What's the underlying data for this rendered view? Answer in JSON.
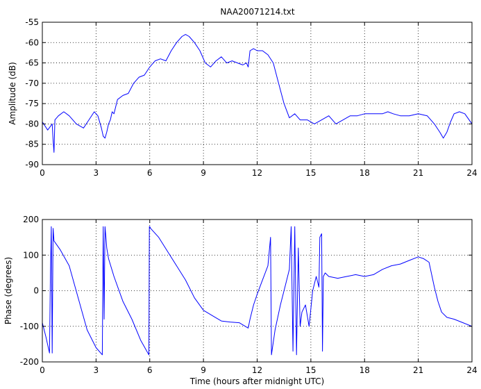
{
  "figure": {
    "title": "NAA20071214.txt"
  },
  "chart_data": [
    {
      "type": "line",
      "title": "NAA20071214.txt",
      "xlabel": "",
      "ylabel": "Amplitude (dB)",
      "xlim": [
        0,
        24
      ],
      "ylim": [
        -90,
        -55
      ],
      "xticks": [
        0,
        3,
        6,
        9,
        12,
        15,
        18,
        21,
        24
      ],
      "yticks": [
        -90,
        -85,
        -80,
        -75,
        -70,
        -65,
        -60,
        -55
      ],
      "grid": true,
      "line_color": "#0000ff",
      "series": [
        {
          "x": [
            0,
            0.3,
            0.55,
            0.6,
            0.65,
            0.7,
            0.9,
            1.2,
            1.5,
            1.9,
            2.3,
            2.6,
            2.9,
            3.1,
            3.3,
            3.4,
            3.5,
            3.6,
            3.7,
            3.8,
            3.9,
            4.0,
            4.2,
            4.5,
            4.8,
            5.1,
            5.4,
            5.7,
            6.0,
            6.3,
            6.6,
            6.9,
            7.2,
            7.5,
            7.8,
            8.0,
            8.2,
            8.5,
            8.8,
            9.1,
            9.4,
            9.7,
            10.0,
            10.3,
            10.6,
            10.9,
            11.2,
            11.4,
            11.5,
            11.6,
            11.8,
            12.0,
            12.3,
            12.6,
            12.9,
            13.2,
            13.5,
            13.8,
            14.1,
            14.4,
            14.8,
            15.2,
            15.6,
            16.0,
            16.4,
            16.8,
            17.2,
            17.6,
            18.0,
            18.5,
            19.0,
            19.3,
            19.6,
            20.0,
            20.5,
            21.0,
            21.5,
            21.9,
            22.2,
            22.4,
            22.6,
            22.8,
            23.0,
            23.3,
            23.6,
            24.0
          ],
          "values": [
            -79.5,
            -81.5,
            -80,
            -84,
            -87,
            -79,
            -78,
            -77,
            -78,
            -80,
            -81,
            -79,
            -77,
            -78,
            -81,
            -83,
            -83.5,
            -82,
            -80,
            -79,
            -77,
            -77.5,
            -74,
            -73,
            -72.5,
            -70,
            -68.5,
            -68,
            -66,
            -64.5,
            -64,
            -64.5,
            -62,
            -60,
            -58.5,
            -58,
            -58.5,
            -60,
            -62,
            -65,
            -66,
            -64.5,
            -63.5,
            -65,
            -64.5,
            -65,
            -65.5,
            -65,
            -66,
            -62,
            -61.5,
            -62,
            -62,
            -63,
            -65,
            -70,
            -75,
            -78.5,
            -77.5,
            -79,
            -79,
            -80,
            -79,
            -78,
            -80,
            -79,
            -78,
            -78,
            -77.5,
            -77.5,
            -77.5,
            -77,
            -77.5,
            -78,
            -78,
            -77.5,
            -78,
            -80,
            -82,
            -83.5,
            -82,
            -79.5,
            -77.5,
            -77,
            -77.5,
            -80
          ]
        }
      ]
    },
    {
      "type": "line",
      "title": "",
      "xlabel": "Time (hours after midnight UTC)",
      "ylabel": "Phase (degrees)",
      "xlim": [
        0,
        24
      ],
      "ylim": [
        -200,
        200
      ],
      "xticks": [
        0,
        3,
        6,
        9,
        12,
        15,
        18,
        21,
        24
      ],
      "yticks": [
        -200,
        -100,
        0,
        100,
        200
      ],
      "grid": true,
      "line_color": "#0000ff",
      "series": [
        {
          "x": [
            0,
            0.2,
            0.4,
            0.45,
            0.5,
            0.55,
            0.6,
            0.65,
            1.0,
            1.5,
            2.0,
            2.5,
            3.0,
            3.35,
            3.4,
            3.45,
            3.5,
            3.55,
            3.6,
            3.7,
            4.0,
            4.5,
            5.0,
            5.5,
            5.95,
            5.98,
            6.0,
            6.05,
            6.5,
            7.0,
            7.5,
            8.0,
            8.5,
            9.0,
            9.5,
            10.0,
            10.5,
            11.0,
            11.5,
            11.6,
            11.8,
            12.0,
            12.3,
            12.6,
            12.75,
            12.8,
            13.0,
            13.3,
            13.6,
            13.8,
            13.9,
            14.0,
            14.1,
            14.2,
            14.3,
            14.4,
            14.5,
            14.7,
            14.9,
            15.1,
            15.3,
            15.45,
            15.5,
            15.6,
            15.65,
            15.7,
            15.8,
            16.0,
            16.5,
            17.0,
            17.5,
            18.0,
            18.5,
            19.0,
            19.5,
            20.0,
            20.5,
            21.0,
            21.3,
            21.6,
            21.9,
            22.1,
            22.3,
            22.6,
            23.0,
            23.5,
            24.0
          ],
          "values": [
            -90,
            -130,
            -175,
            40,
            180,
            -175,
            175,
            140,
            115,
            70,
            -20,
            -110,
            -160,
            -180,
            180,
            -80,
            180,
            150,
            120,
            90,
            40,
            -30,
            -80,
            -140,
            -180,
            180,
            180,
            175,
            150,
            110,
            70,
            30,
            -20,
            -55,
            -70,
            -85,
            -88,
            -90,
            -105,
            -80,
            -40,
            -10,
            30,
            70,
            150,
            -180,
            -110,
            -40,
            20,
            60,
            180,
            -170,
            180,
            -180,
            120,
            -100,
            -60,
            -40,
            -100,
            0,
            40,
            10,
            150,
            160,
            -170,
            40,
            50,
            40,
            35,
            40,
            45,
            40,
            45,
            60,
            70,
            75,
            85,
            95,
            90,
            80,
            10,
            -30,
            -60,
            -75,
            -80,
            -90,
            -100
          ]
        }
      ]
    }
  ]
}
